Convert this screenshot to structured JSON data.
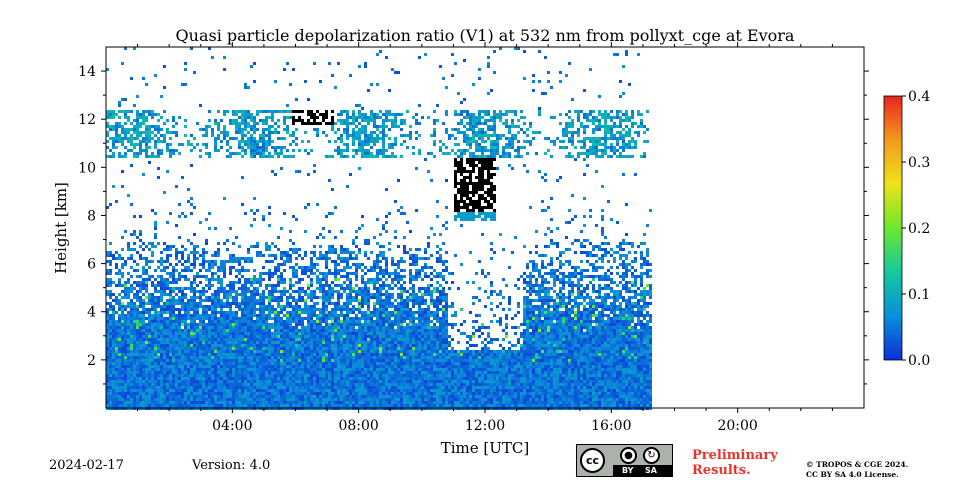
{
  "chart_data": {
    "type": "heatmap",
    "title": "Quasi particle depolarization ratio (V1) at 532 nm from pollyxt_cge at Evora",
    "xlabel": "Time [UTC]",
    "ylabel": "Height [km]",
    "xlim_hours": [
      0,
      24
    ],
    "ylim_km": [
      0,
      15
    ],
    "data_end_hour": 17.2,
    "x_ticks": [
      {
        "hour": 4,
        "label": "04:00"
      },
      {
        "hour": 8,
        "label": "08:00"
      },
      {
        "hour": 12,
        "label": "12:00"
      },
      {
        "hour": 16,
        "label": "16:00"
      },
      {
        "hour": 20,
        "label": "20:00"
      }
    ],
    "y_ticks": [
      {
        "value": 2,
        "label": "2"
      },
      {
        "value": 4,
        "label": "4"
      },
      {
        "value": 6,
        "label": "6"
      },
      {
        "value": 8,
        "label": "8"
      },
      {
        "value": 10,
        "label": "10"
      },
      {
        "value": 12,
        "label": "12"
      },
      {
        "value": 14,
        "label": "14"
      }
    ],
    "colorbar": {
      "range": [
        0.0,
        0.4
      ],
      "ticks": [
        {
          "value": 0.0,
          "label": "0.0"
        },
        {
          "value": 0.1,
          "label": "0.1"
        },
        {
          "value": 0.2,
          "label": "0.2"
        },
        {
          "value": 0.3,
          "label": "0.3"
        },
        {
          "value": 0.4,
          "label": "0.4"
        }
      ],
      "colormap": "jet",
      "colors": [
        "#0b2fd8",
        "#0a90d8",
        "#14c8a0",
        "#6ce82c",
        "#ede21a",
        "#f39a1d",
        "#e8251e"
      ]
    },
    "features": [
      {
        "name": "boundary-layer",
        "time_range": [
          0,
          17.2
        ],
        "height_range_km": [
          0,
          7
        ],
        "typical_value": 0.05
      },
      {
        "name": "cirrus-layer",
        "time_range": [
          0,
          17.2
        ],
        "height_range_km": [
          10.5,
          12.5
        ],
        "typical_value": 0.08
      },
      {
        "name": "depolarizing-cloud",
        "time_range": [
          11,
          12.3
        ],
        "height_range_km": [
          7.8,
          10.5
        ],
        "typical_value": 0.5
      }
    ]
  },
  "footer": {
    "date": "2024-02-17",
    "version": "Version: 4.0",
    "cc_label": "cc",
    "cc_by": "BY",
    "cc_sa": "SA",
    "preliminary_line1": "Preliminary",
    "preliminary_line2": "Results.",
    "license_line1": "© TROPOS & CGE 2024.",
    "license_line2": "CC BY SA 4.0 License."
  }
}
